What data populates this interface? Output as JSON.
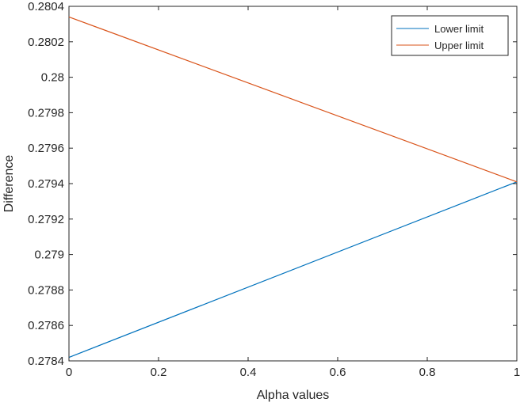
{
  "chart_data": {
    "type": "line",
    "xlabel": "Alpha values",
    "ylabel": "Difference",
    "xlim": [
      0,
      1
    ],
    "ylim": [
      0.2784,
      0.2804
    ],
    "x_ticks": [
      0,
      0.2,
      0.4,
      0.6,
      0.8,
      1
    ],
    "x_tick_labels": [
      "0",
      "0.2",
      "0.4",
      "0.6",
      "0.8",
      "1"
    ],
    "y_ticks": [
      0.2784,
      0.2786,
      0.2788,
      0.279,
      0.2792,
      0.2794,
      0.2796,
      0.2798,
      0.28,
      0.2802,
      0.2804
    ],
    "y_tick_labels": [
      "0.2784",
      "0.2786",
      "0.2788",
      "0.279",
      "0.2792",
      "0.2794",
      "0.2796",
      "0.2798",
      "0.28",
      "0.2802",
      "0.2804"
    ],
    "grid": false,
    "legend_position": "top-right",
    "series": [
      {
        "name": "Lower limit",
        "color": "#0072BD",
        "x": [
          0,
          1
        ],
        "y": [
          0.27842,
          0.27941
        ]
      },
      {
        "name": "Upper limit",
        "color": "#D95319",
        "x": [
          0,
          1
        ],
        "y": [
          0.28034,
          0.27941
        ]
      }
    ]
  }
}
